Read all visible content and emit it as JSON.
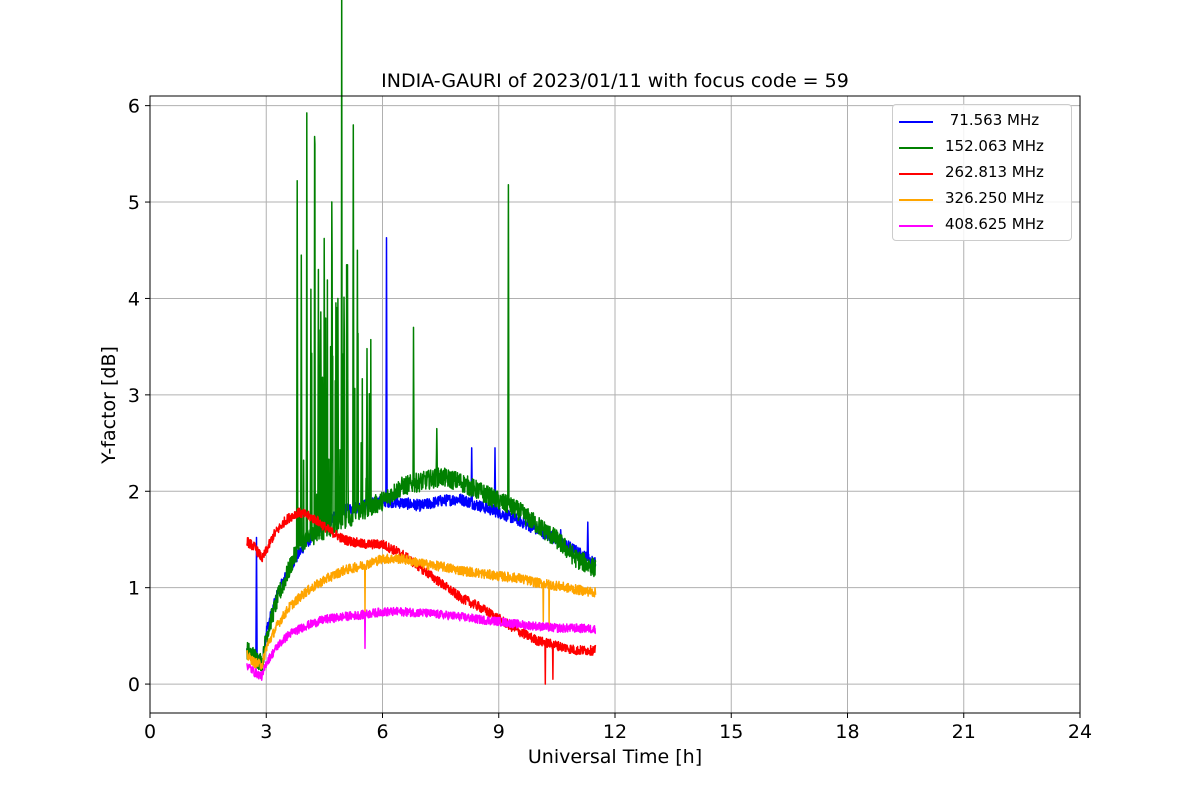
{
  "chart_data": {
    "type": "line",
    "title": "INDIA-GAURI of 2023/01/11 with focus code = 59",
    "xlabel": "Universal Time [h]",
    "ylabel": "Y-factor [dB]",
    "xlim": [
      0,
      24
    ],
    "ylim": [
      -0.3,
      6.1
    ],
    "xticks": [
      0,
      3,
      6,
      9,
      12,
      15,
      18,
      21,
      24
    ],
    "yticks": [
      0,
      1,
      2,
      3,
      4,
      5,
      6
    ],
    "grid": true,
    "legend_position": "top-right",
    "series": [
      {
        "name": " 71.563 MHz",
        "color": "#0000ff",
        "x": [
          2.5,
          2.7,
          2.9,
          3.0,
          3.3,
          3.6,
          4.0,
          4.5,
          5.0,
          5.5,
          6.0,
          6.5,
          7.0,
          7.5,
          8.0,
          8.5,
          9.0,
          9.5,
          10.0,
          10.5,
          11.0,
          11.5
        ],
        "y": [
          0.35,
          0.28,
          0.22,
          0.55,
          0.95,
          1.2,
          1.45,
          1.65,
          1.8,
          1.85,
          1.9,
          1.88,
          1.85,
          1.9,
          1.92,
          1.85,
          1.78,
          1.7,
          1.6,
          1.5,
          1.38,
          1.25
        ],
        "spikes": [
          [
            2.75,
            1.52
          ],
          [
            4.3,
            1.7
          ],
          [
            5.0,
            2.0
          ],
          [
            6.1,
            4.63
          ],
          [
            8.3,
            2.45
          ],
          [
            8.9,
            2.45
          ],
          [
            10.6,
            1.6
          ],
          [
            11.3,
            1.68
          ]
        ]
      },
      {
        "name": "152.063 MHz",
        "color": "#008000",
        "x": [
          2.5,
          2.7,
          2.9,
          3.0,
          3.3,
          3.6,
          3.8,
          4.0,
          4.5,
          5.0,
          5.5,
          6.0,
          6.5,
          7.0,
          7.5,
          8.0,
          8.5,
          9.0,
          9.5,
          10.0,
          10.5,
          11.0,
          11.5
        ],
        "y": [
          0.35,
          0.28,
          0.22,
          0.5,
          0.9,
          1.2,
          1.4,
          1.5,
          1.6,
          1.7,
          1.8,
          1.9,
          2.05,
          2.1,
          2.15,
          2.1,
          2.0,
          1.9,
          1.8,
          1.65,
          1.5,
          1.3,
          1.2
        ],
        "spikes": [
          [
            3.8,
            5.22
          ],
          [
            3.9,
            4.45
          ],
          [
            4.05,
            4.15
          ],
          [
            4.15,
            4.05
          ],
          [
            4.25,
            5.68
          ],
          [
            4.35,
            4.3
          ],
          [
            4.5,
            4.25
          ],
          [
            4.7,
            4.45
          ],
          [
            4.85,
            4.0
          ],
          [
            4.95,
            5.5
          ],
          [
            5.1,
            4.35
          ],
          [
            5.25,
            5.8
          ],
          [
            5.35,
            4.5
          ],
          [
            5.6,
            3.48
          ],
          [
            6.8,
            3.7
          ],
          [
            7.4,
            2.65
          ],
          [
            9.25,
            5.18
          ]
        ]
      },
      {
        "name": "262.813 MHz",
        "color": "#ff0000",
        "x": [
          2.5,
          2.7,
          2.9,
          3.2,
          3.5,
          3.8,
          4.0,
          4.3,
          4.6,
          5.0,
          5.5,
          6.0,
          6.5,
          7.0,
          7.5,
          8.0,
          8.5,
          9.0,
          9.5,
          10.0,
          10.5,
          11.0,
          11.5
        ],
        "y": [
          1.48,
          1.42,
          1.3,
          1.55,
          1.7,
          1.78,
          1.76,
          1.7,
          1.6,
          1.5,
          1.45,
          1.45,
          1.35,
          1.2,
          1.05,
          0.9,
          0.8,
          0.68,
          0.55,
          0.45,
          0.4,
          0.35,
          0.35
        ],
        "spikes": [
          [
            10.2,
            0.0
          ],
          [
            10.4,
            0.05
          ]
        ]
      },
      {
        "name": "326.250 MHz",
        "color": "#ffa500",
        "x": [
          2.5,
          2.7,
          2.9,
          3.0,
          3.3,
          3.6,
          4.0,
          4.5,
          5.0,
          5.5,
          6.0,
          6.5,
          7.0,
          7.5,
          8.0,
          8.5,
          9.0,
          9.5,
          10.0,
          10.5,
          11.0,
          11.5
        ],
        "y": [
          0.3,
          0.22,
          0.2,
          0.38,
          0.62,
          0.8,
          0.95,
          1.08,
          1.18,
          1.23,
          1.3,
          1.3,
          1.25,
          1.22,
          1.18,
          1.15,
          1.12,
          1.1,
          1.05,
          1.02,
          0.98,
          0.95
        ],
        "spikes": [
          [
            5.55,
            0.75
          ],
          [
            10.15,
            0.65
          ],
          [
            10.3,
            0.6
          ]
        ]
      },
      {
        "name": "408.625 MHz",
        "color": "#ff00ff",
        "x": [
          2.5,
          2.7,
          2.9,
          3.0,
          3.3,
          3.6,
          4.0,
          4.5,
          5.0,
          5.5,
          6.0,
          6.5,
          7.0,
          7.5,
          8.0,
          8.5,
          9.0,
          9.5,
          10.0,
          10.5,
          11.0,
          11.5
        ],
        "y": [
          0.2,
          0.12,
          0.08,
          0.22,
          0.4,
          0.52,
          0.6,
          0.67,
          0.7,
          0.72,
          0.75,
          0.75,
          0.74,
          0.72,
          0.7,
          0.67,
          0.65,
          0.62,
          0.6,
          0.58,
          0.58,
          0.57
        ],
        "spikes": [
          [
            5.55,
            0.37
          ]
        ]
      }
    ]
  }
}
